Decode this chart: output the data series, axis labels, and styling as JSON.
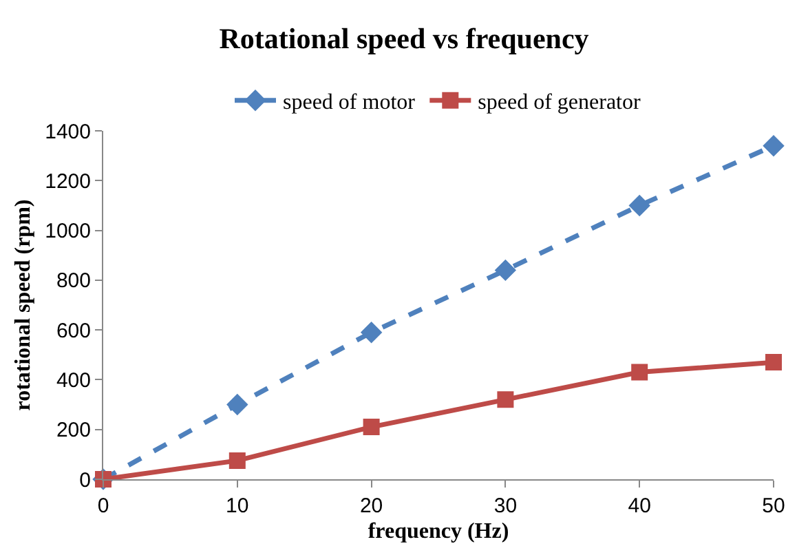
{
  "chart_data": {
    "type": "line",
    "title": "Rotational speed vs frequency",
    "xlabel": "frequency (Hz)",
    "ylabel": "rotational speed (rpm)",
    "x": [
      0,
      10,
      20,
      30,
      40,
      50
    ],
    "series": [
      {
        "name": "speed of motor",
        "color": "#4f81bd",
        "values": [
          0,
          300,
          590,
          840,
          1100,
          1340
        ],
        "marker": "diamond",
        "line_style": "dashed"
      },
      {
        "name": "speed of generator",
        "color": "#be4b48",
        "values": [
          0,
          75,
          210,
          320,
          430,
          470
        ],
        "marker": "square",
        "line_style": "solid"
      }
    ],
    "xlim": [
      0,
      50
    ],
    "xticks": [
      0,
      10,
      20,
      30,
      40,
      50
    ],
    "ylim": [
      0,
      1400
    ],
    "yticks": [
      0,
      200,
      400,
      600,
      800,
      1000,
      1200,
      1400
    ],
    "grid": false,
    "legend": "top"
  }
}
